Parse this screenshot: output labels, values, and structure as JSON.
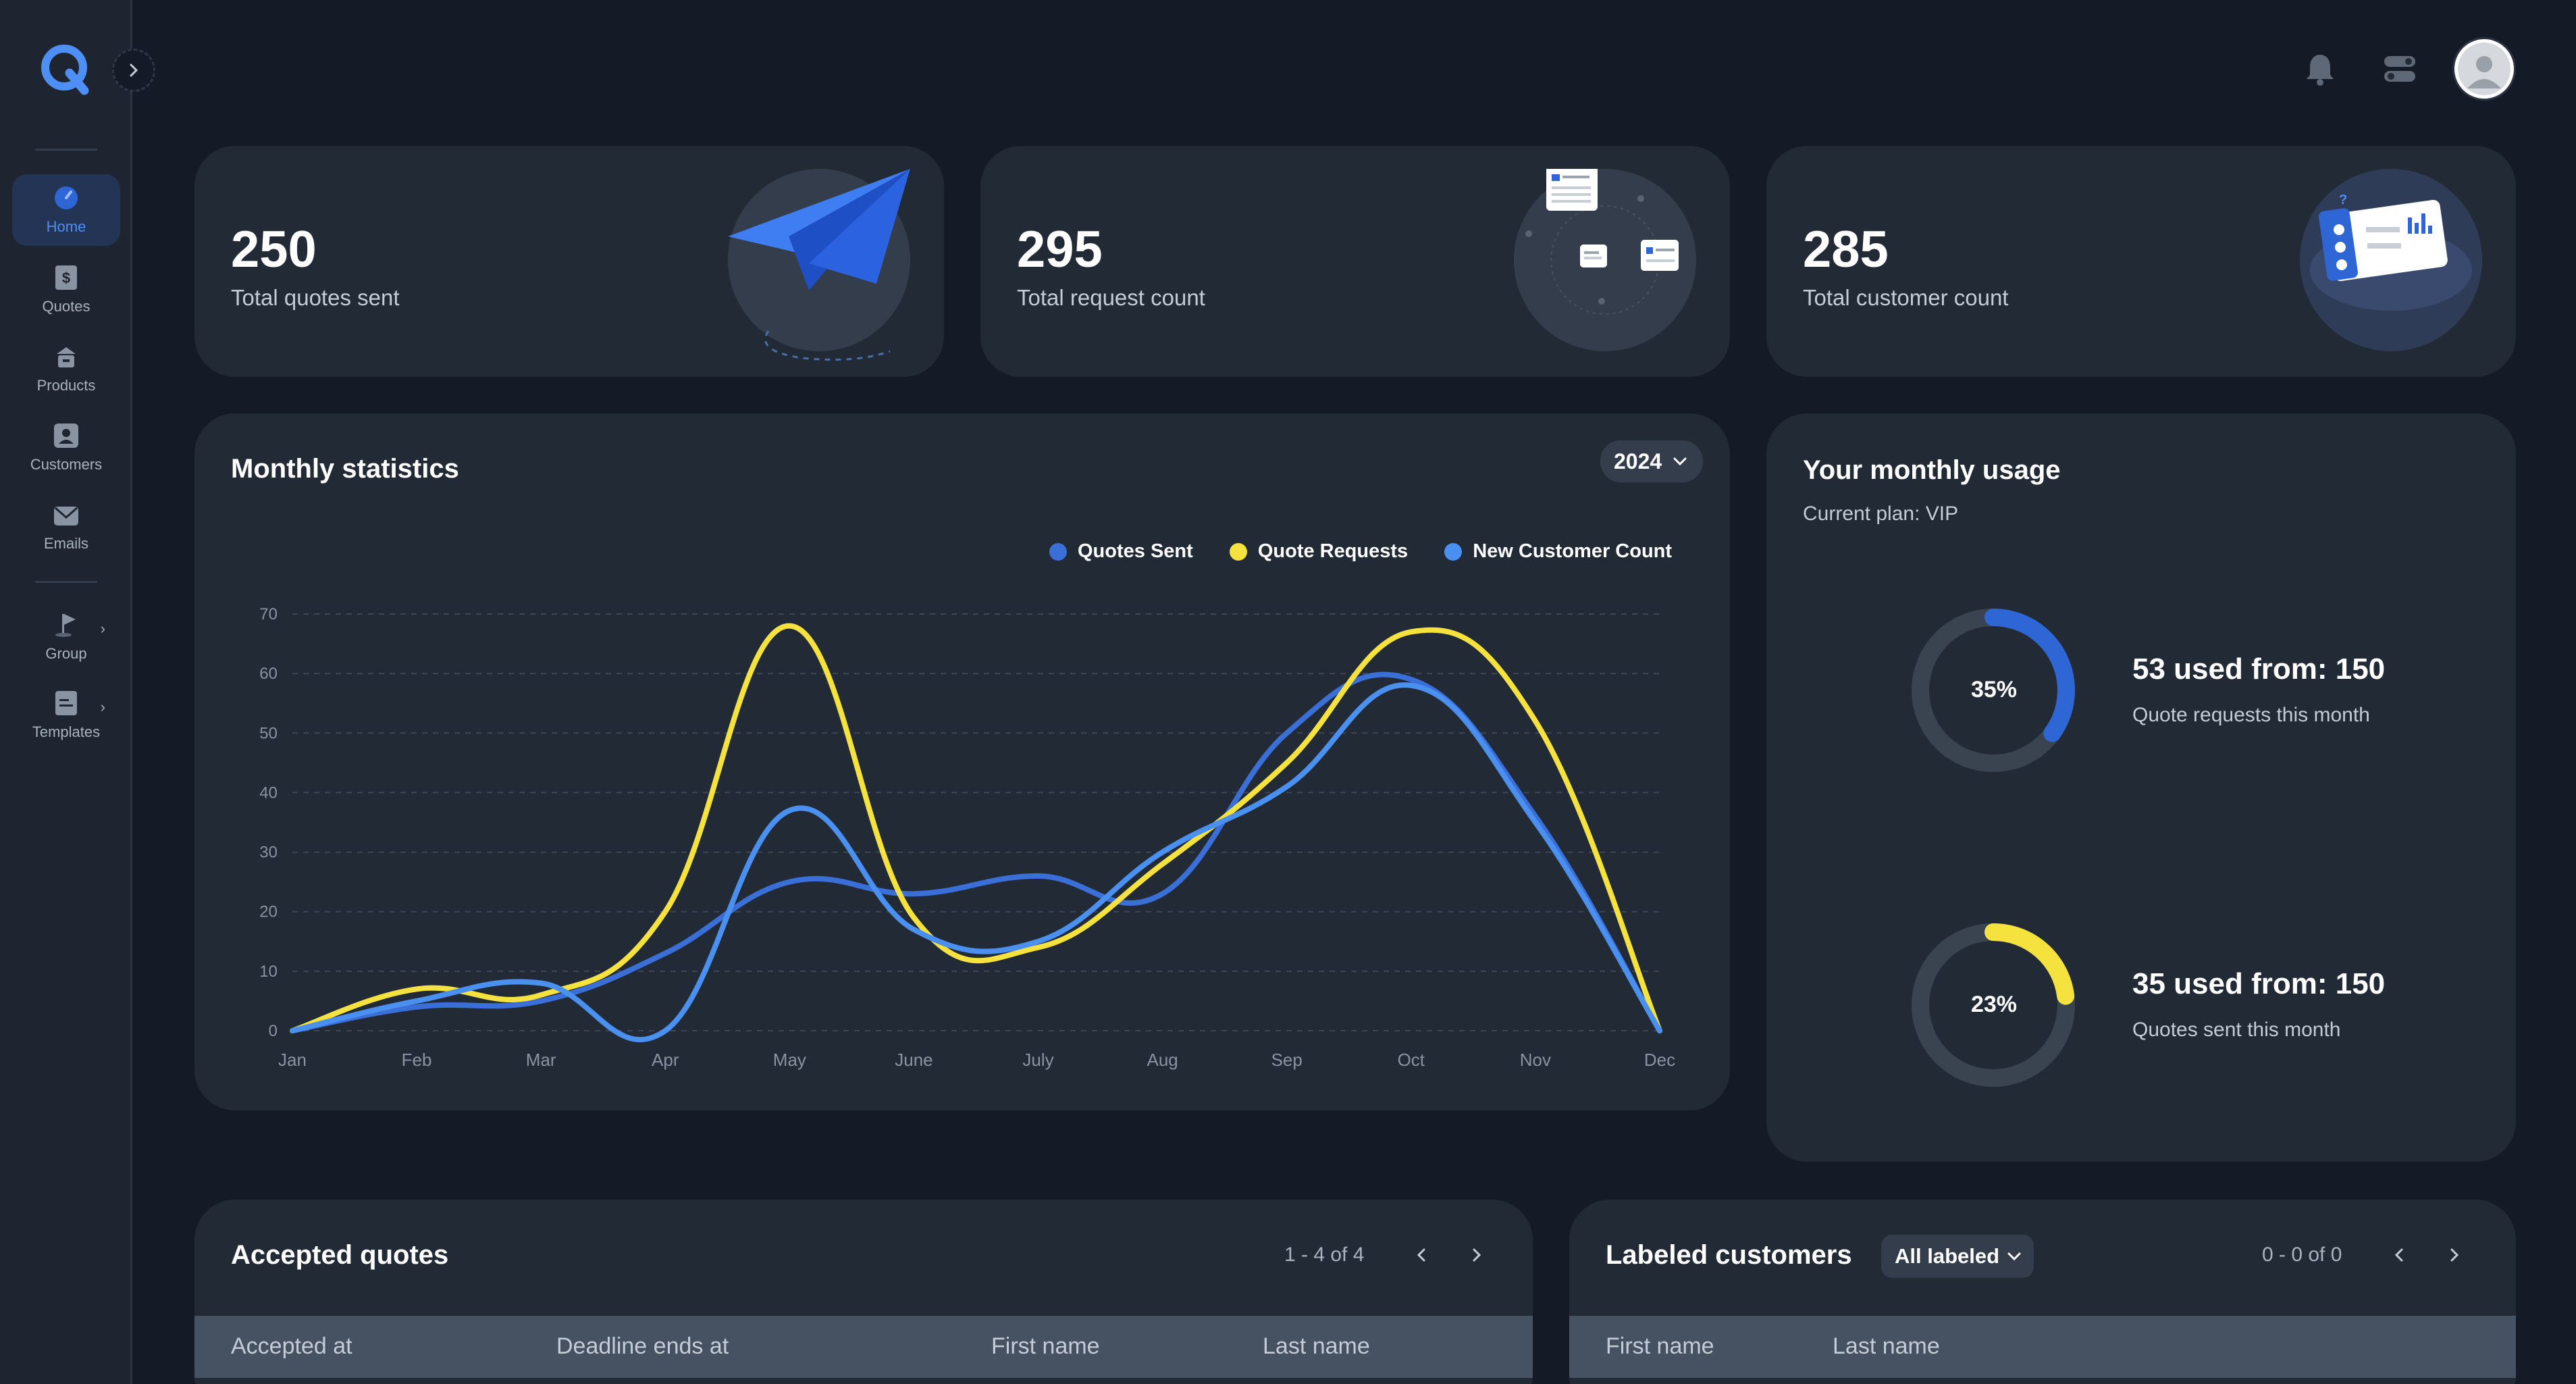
{
  "sidebar": {
    "items": [
      {
        "label": "Home",
        "icon": "home-icon"
      },
      {
        "label": "Quotes",
        "icon": "dollar-icon"
      },
      {
        "label": "Products",
        "icon": "box-icon"
      },
      {
        "label": "Customers",
        "icon": "user-icon"
      },
      {
        "label": "Emails",
        "icon": "mail-icon"
      },
      {
        "label": "Group",
        "icon": "flag-icon"
      },
      {
        "label": "Templates",
        "icon": "document-icon"
      }
    ]
  },
  "stats": [
    {
      "value": "250",
      "label": "Total quotes sent"
    },
    {
      "value": "295",
      "label": "Total request count"
    },
    {
      "value": "285",
      "label": "Total customer count"
    }
  ],
  "monthly": {
    "title": "Monthly statistics",
    "year": "2024"
  },
  "chart_data": {
    "type": "line",
    "title": "Monthly statistics",
    "categories": [
      "Jan",
      "Feb",
      "Mar",
      "Apr",
      "May",
      "June",
      "July",
      "Aug",
      "Sep",
      "Oct",
      "Nov",
      "Dec"
    ],
    "yticks": [
      "0",
      "10",
      "20",
      "30",
      "40",
      "50",
      "60",
      "70"
    ],
    "ylim": [
      0,
      70
    ],
    "grid": true,
    "legend_position": "top-right",
    "series": [
      {
        "name": "Quotes Sent",
        "color": "#3a6fd8",
        "values": [
          0,
          4,
          5,
          13,
          25,
          23,
          26,
          23,
          50,
          59,
          36,
          0
        ]
      },
      {
        "name": "Quote Requests",
        "color": "#f5e23f",
        "values": [
          0,
          7,
          6,
          20,
          68,
          19,
          14,
          28,
          45,
          67,
          52,
          0
        ]
      },
      {
        "name": "New Customer Count",
        "color": "#4a90f0",
        "values": [
          0,
          5,
          8,
          0,
          37,
          17,
          15,
          30,
          41,
          58,
          35,
          0
        ]
      }
    ]
  },
  "usage": {
    "title": "Your monthly usage",
    "plan": "Current plan: VIP",
    "items": [
      {
        "percent": "35%",
        "fraction": 0.35,
        "main": "53 used from: 150",
        "sub": "Quote requests this month",
        "color": "#2f66d6"
      },
      {
        "percent": "23%",
        "fraction": 0.23,
        "main": "35 used from: 150",
        "sub": "Quotes sent this month",
        "color": "#f5e23f"
      }
    ]
  },
  "accepted": {
    "title": "Accepted quotes",
    "pager": "1 - 4 of 4",
    "columns": [
      "Accepted at",
      "Deadline ends at",
      "First name",
      "Last name"
    ]
  },
  "labeled": {
    "title": "Labeled customers",
    "filter": "All labeled",
    "pager": "0 - 0 of 0",
    "columns": [
      "First name",
      "Last name"
    ]
  },
  "colors": {
    "background": "#151b26",
    "card": "#222a36",
    "accent": "#4d8ff4"
  }
}
